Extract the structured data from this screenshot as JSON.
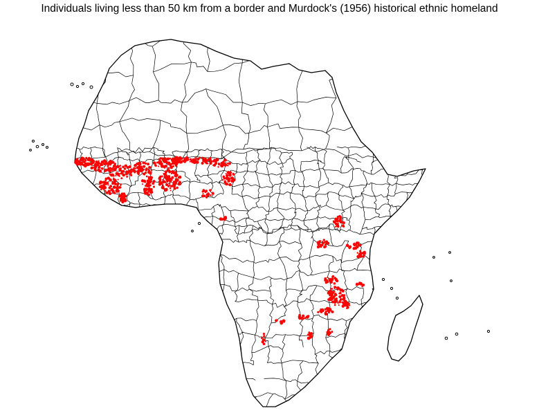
{
  "title": "Individuals living less than 50 km from a border and Murdock's (1956) historical ethnic homeland",
  "colors": {
    "points": "#ff0000",
    "outline": "#000000",
    "background": "#ffffff"
  },
  "map": {
    "region": "Africa",
    "point_marker_color": "#ff0000",
    "homeland_border_color": "#000000"
  }
}
